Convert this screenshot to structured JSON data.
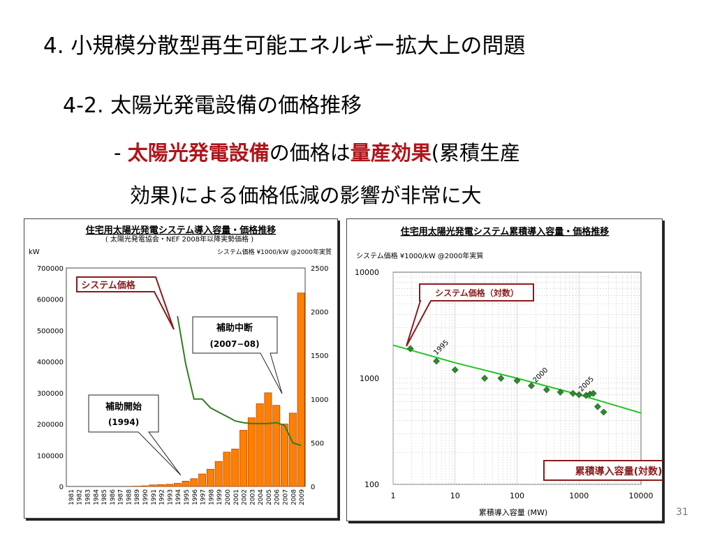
{
  "slide": {
    "title": "4. 小規模分散型再生可能エネルギー拡大上の問題",
    "subtitle": "4-2. 太陽光発電設備の価格推移",
    "bullet_dash": "- ",
    "bullet_r1": "太陽光発電設備",
    "bullet_t1": "の価格は",
    "bullet_r2": "量産効果",
    "bullet_t2": "(累積生産",
    "bullet_line2": "効果)による価格低減の影響が非常に大",
    "page_number": "31"
  },
  "colors": {
    "accent_red": "#b0141a",
    "bar_orange": "#ff7f00",
    "line_green": "#2e7d1e",
    "point_green": "#2f8a2f",
    "fit_green": "#22c422"
  },
  "chart_data": [
    {
      "type": "bar",
      "title": "住宅用太陽光発電システム導入容量・価格推移",
      "subtitle": "( 太陽光発電協会・NEF 2008年以降実勢価格 )",
      "ylabel": "kW",
      "y2label": "システム価格 ¥1000/kW @2000年実質",
      "ylim": [
        0,
        700000
      ],
      "y2lim": [
        0,
        2500
      ],
      "yticks": [
        "0",
        "100000",
        "200000",
        "300000",
        "400000",
        "500000",
        "600000",
        "700000"
      ],
      "y2ticks": [
        "0",
        "500",
        "1000",
        "1500",
        "2000",
        "2500"
      ],
      "categories": [
        "1981",
        "1982",
        "1983",
        "1984",
        "1985",
        "1986",
        "1987",
        "1988",
        "1989",
        "1990",
        "1991",
        "1992",
        "1993",
        "1994",
        "1995",
        "1996",
        "1997",
        "1998",
        "1999",
        "2000",
        "2001",
        "2002",
        "2003",
        "2004",
        "2005",
        "2006",
        "2007",
        "2008",
        "2009"
      ],
      "series": [
        {
          "name": "",
          "kind": "bar",
          "values": [
            0,
            0,
            0,
            0,
            0,
            0,
            0,
            0,
            1000,
            2000,
            5000,
            6000,
            7000,
            10000,
            17000,
            25000,
            40000,
            55000,
            80000,
            110000,
            120000,
            180000,
            220000,
            265000,
            300000,
            260000,
            200000,
            235000,
            620000
          ]
        },
        {
          "name": "",
          "kind": "line",
          "axis": "y2",
          "x": [
            "1994",
            "1995",
            "1996",
            "1997",
            "1998",
            "1999",
            "2000",
            "2001",
            "2002",
            "2003",
            "2004",
            "2005",
            "2006",
            "2007",
            "2008",
            "2009"
          ],
          "values": [
            1950,
            1400,
            1000,
            1000,
            900,
            850,
            800,
            750,
            730,
            720,
            720,
            720,
            730,
            700,
            500,
            470
          ]
        }
      ],
      "callouts": [
        "システム価格",
        "補助中断",
        "(2007−08)",
        "補助開始",
        "(1994)"
      ]
    },
    {
      "type": "scatter",
      "title": "住宅用太陽光発電システム累積導入容量・価格推移",
      "ylabel": "システム価格 ¥1000/kW @2000年実質",
      "xlabel": "累積導入容量 (MW)",
      "xscale": "log",
      "yscale": "log",
      "xlim": [
        1,
        10000
      ],
      "ylim": [
        100,
        10000
      ],
      "xticks": [
        "1",
        "10",
        "100",
        "1000",
        "10000"
      ],
      "yticks": [
        "100",
        "1000",
        "10000"
      ],
      "points": [
        [
          1.9,
          1900
        ],
        [
          5,
          1450
        ],
        [
          10,
          1200
        ],
        [
          30,
          1000
        ],
        [
          55,
          1000
        ],
        [
          100,
          950
        ],
        [
          170,
          850
        ],
        [
          300,
          780
        ],
        [
          500,
          740
        ],
        [
          800,
          720
        ],
        [
          1000,
          700
        ],
        [
          1300,
          690
        ],
        [
          1500,
          710
        ],
        [
          1700,
          720
        ],
        [
          2000,
          540
        ],
        [
          2500,
          480
        ]
      ],
      "fit": [
        [
          1,
          2050
        ],
        [
          10,
          1400
        ],
        [
          100,
          1000
        ],
        [
          1000,
          700
        ],
        [
          10000,
          470
        ]
      ],
      "year_labels": [
        {
          "text": "1995",
          "x": 5,
          "y": 1550
        },
        {
          "text": "2000",
          "x": 200,
          "y": 850
        },
        {
          "text": "2005",
          "x": 1100,
          "y": 700
        }
      ],
      "callouts": [
        "システム価格（対数）",
        "累積導入容量(対数)"
      ]
    }
  ]
}
